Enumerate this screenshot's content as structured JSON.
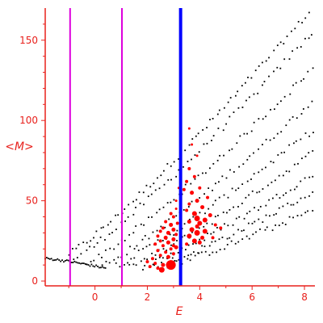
{
  "chart_data": {
    "type": "scatter",
    "title": "",
    "xlabel": "E",
    "ylabel": "<M>",
    "xlim": [
      -1.9,
      8.4
    ],
    "ylim": [
      -3,
      170
    ],
    "grid": false,
    "x_ticks": [
      0,
      2,
      4,
      6,
      8
    ],
    "y_ticks": [
      0,
      50,
      100,
      150
    ],
    "x_tick_labels": [
      "0",
      "2",
      "4",
      "6",
      "8"
    ],
    "y_tick_labels": [
      "0",
      "50",
      "100",
      "150"
    ],
    "vertical_lines": [
      {
        "x": -0.95,
        "color": "#dd00dd"
      },
      {
        "x": 1.03,
        "color": "#dd00dd"
      },
      {
        "x": 3.27,
        "color": "#0000ff"
      }
    ],
    "black_bands": [
      {
        "x0": -1.0,
        "y0": 17,
        "x1": 8.3,
        "y1": 170,
        "n": 70
      },
      {
        "x0": -0.8,
        "y0": 14,
        "x1": 8.3,
        "y1": 155,
        "n": 62
      },
      {
        "x0": -0.3,
        "y0": 11,
        "x1": 8.3,
        "y1": 132,
        "n": 60
      },
      {
        "x0": 0.3,
        "y0": 10,
        "x1": 8.3,
        "y1": 112,
        "n": 55
      },
      {
        "x0": 0.8,
        "y0": 10,
        "x1": 8.3,
        "y1": 94,
        "n": 52
      },
      {
        "x0": 1.3,
        "y0": 9,
        "x1": 8.3,
        "y1": 80,
        "n": 50
      },
      {
        "x0": 1.8,
        "y0": 9,
        "x1": 8.3,
        "y1": 66,
        "n": 48
      },
      {
        "x0": 2.3,
        "y0": 9,
        "x1": 8.3,
        "y1": 55,
        "n": 45
      },
      {
        "x0": 2.8,
        "y0": 10,
        "x1": 8.3,
        "y1": 44,
        "n": 40
      }
    ],
    "black_curve": {
      "x_start": -1.9,
      "x_end": 0.4,
      "n": 40
    },
    "red_points": [
      {
        "x": 3.6,
        "y": 95,
        "r": 1.5
      },
      {
        "x": 3.7,
        "y": 85,
        "r": 1.5
      },
      {
        "x": 3.9,
        "y": 78,
        "r": 1.5
      },
      {
        "x": 3.6,
        "y": 70,
        "r": 2
      },
      {
        "x": 3.8,
        "y": 65,
        "r": 2
      },
      {
        "x": 3.5,
        "y": 62,
        "r": 2
      },
      {
        "x": 4.0,
        "y": 58,
        "r": 2
      },
      {
        "x": 3.4,
        "y": 57,
        "r": 2
      },
      {
        "x": 3.7,
        "y": 55,
        "r": 2.5
      },
      {
        "x": 4.3,
        "y": 52,
        "r": 2
      },
      {
        "x": 3.9,
        "y": 50,
        "r": 2.5
      },
      {
        "x": 3.6,
        "y": 48,
        "r": 2
      },
      {
        "x": 4.1,
        "y": 46,
        "r": 2.5
      },
      {
        "x": 3.5,
        "y": 44,
        "r": 2
      },
      {
        "x": 3.8,
        "y": 42,
        "r": 3
      },
      {
        "x": 4.4,
        "y": 41,
        "r": 2.5
      },
      {
        "x": 3.9,
        "y": 39,
        "r": 3.5
      },
      {
        "x": 4.2,
        "y": 38,
        "r": 3
      },
      {
        "x": 3.6,
        "y": 37,
        "r": 2.5
      },
      {
        "x": 4.0,
        "y": 36,
        "r": 3
      },
      {
        "x": 3.9,
        "y": 34,
        "r": 2.5
      },
      {
        "x": 4.6,
        "y": 35,
        "r": 2
      },
      {
        "x": 4.8,
        "y": 33,
        "r": 2
      },
      {
        "x": 3.7,
        "y": 32,
        "r": 3
      },
      {
        "x": 4.2,
        "y": 31,
        "r": 3
      },
      {
        "x": 3.9,
        "y": 30,
        "r": 3.5
      },
      {
        "x": 3.6,
        "y": 28,
        "r": 3
      },
      {
        "x": 4.1,
        "y": 27,
        "r": 2.5
      },
      {
        "x": 4.5,
        "y": 27,
        "r": 2
      },
      {
        "x": 3.8,
        "y": 25,
        "r": 3
      },
      {
        "x": 4.0,
        "y": 24,
        "r": 2.5
      },
      {
        "x": 3.5,
        "y": 23,
        "r": 2
      },
      {
        "x": 3.1,
        "y": 45,
        "r": 1.5
      },
      {
        "x": 2.9,
        "y": 42,
        "r": 2
      },
      {
        "x": 3.0,
        "y": 40,
        "r": 2
      },
      {
        "x": 2.7,
        "y": 37,
        "r": 2
      },
      {
        "x": 2.9,
        "y": 35,
        "r": 2.5
      },
      {
        "x": 2.6,
        "y": 33,
        "r": 2
      },
      {
        "x": 3.0,
        "y": 32,
        "r": 2.5
      },
      {
        "x": 2.5,
        "y": 31,
        "r": 2
      },
      {
        "x": 2.8,
        "y": 30,
        "r": 2.5
      },
      {
        "x": 3.1,
        "y": 29,
        "r": 2
      },
      {
        "x": 2.4,
        "y": 28,
        "r": 2
      },
      {
        "x": 2.7,
        "y": 27,
        "r": 2.5
      },
      {
        "x": 3.0,
        "y": 26,
        "r": 2.5
      },
      {
        "x": 2.5,
        "y": 25,
        "r": 2
      },
      {
        "x": 2.8,
        "y": 24,
        "r": 2.5
      },
      {
        "x": 2.3,
        "y": 23,
        "r": 2
      },
      {
        "x": 2.6,
        "y": 22,
        "r": 2
      },
      {
        "x": 3.1,
        "y": 21,
        "r": 2.5
      },
      {
        "x": 2.9,
        "y": 20,
        "r": 2
      },
      {
        "x": 2.4,
        "y": 19,
        "r": 2
      },
      {
        "x": 2.7,
        "y": 18,
        "r": 2
      },
      {
        "x": 3.0,
        "y": 17,
        "r": 2
      },
      {
        "x": 2.5,
        "y": 16,
        "r": 2
      },
      {
        "x": 2.8,
        "y": 15,
        "r": 2.5
      },
      {
        "x": 2.2,
        "y": 14,
        "r": 2
      },
      {
        "x": 2.0,
        "y": 12,
        "r": 2
      },
      {
        "x": 2.3,
        "y": 11,
        "r": 2
      },
      {
        "x": 2.6,
        "y": 10,
        "r": 2.5
      },
      {
        "x": 2.1,
        "y": 9,
        "r": 2
      },
      {
        "x": 2.4,
        "y": 8,
        "r": 2
      },
      {
        "x": 3.0,
        "y": 22,
        "r": 2
      },
      {
        "x": 3.15,
        "y": 36,
        "r": 2
      },
      {
        "x": 3.1,
        "y": 50,
        "r": 1.5
      },
      {
        "x": 3.2,
        "y": 58,
        "r": 1.5
      },
      {
        "x": 2.9,
        "y": 10,
        "r": 6
      },
      {
        "x": 2.55,
        "y": 7,
        "r": 3.5
      }
    ]
  }
}
